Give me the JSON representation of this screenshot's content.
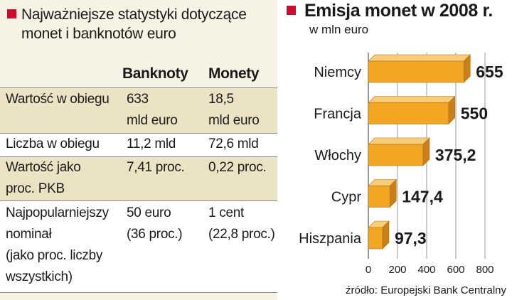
{
  "table": {
    "title": "Najważniejsze statystyki dotyczące monet i banknotów euro",
    "columns": [
      "Banknoty",
      "Monety"
    ],
    "rows": [
      {
        "label": "Wartość w obiegu",
        "banknoty": "633\nmld euro",
        "monety": "18,5\nmld euro"
      },
      {
        "label": "Liczba w obiegu",
        "banknoty": "11,2 mld",
        "monety": "72,6 mld"
      },
      {
        "label": "Wartość jako\nproc. PKB",
        "banknoty": "7,41 proc.",
        "monety": "0,22 proc."
      },
      {
        "label": "Najpopularniejszy\nnominał\n(jako proc. liczby\nwszystkich)",
        "banknoty": "50 euro\n(36 proc.)",
        "monety": "1 cent\n(22,8 proc.)"
      }
    ]
  },
  "chart_data": {
    "type": "bar",
    "orientation": "horizontal",
    "title": "Emisja monet w 2008 r.",
    "subtitle": "w mln euro",
    "categories": [
      "Niemcy",
      "Francja",
      "Włochy",
      "Cypr",
      "Hiszpania"
    ],
    "values": [
      655,
      550,
      375.2,
      147.4,
      97.3
    ],
    "value_labels": [
      "655",
      "550",
      "375,2",
      "147,4",
      "97,3"
    ],
    "xlim": [
      0,
      800
    ],
    "ticks": [
      0,
      200,
      400,
      600,
      800
    ],
    "tick_labels": [
      "0",
      "200",
      "400",
      "600",
      "800"
    ],
    "grid": true,
    "bar_color": "#f2a623",
    "source": "źródło: Europejski Bank Centralny"
  },
  "colors": {
    "accent": "#c8102e",
    "panel_bg": "#f7f3e4",
    "row_shade": "#ece3c5",
    "bar_front": "#f2a623",
    "bar_top": "#f8cd7a",
    "bar_side": "#c9801a"
  }
}
